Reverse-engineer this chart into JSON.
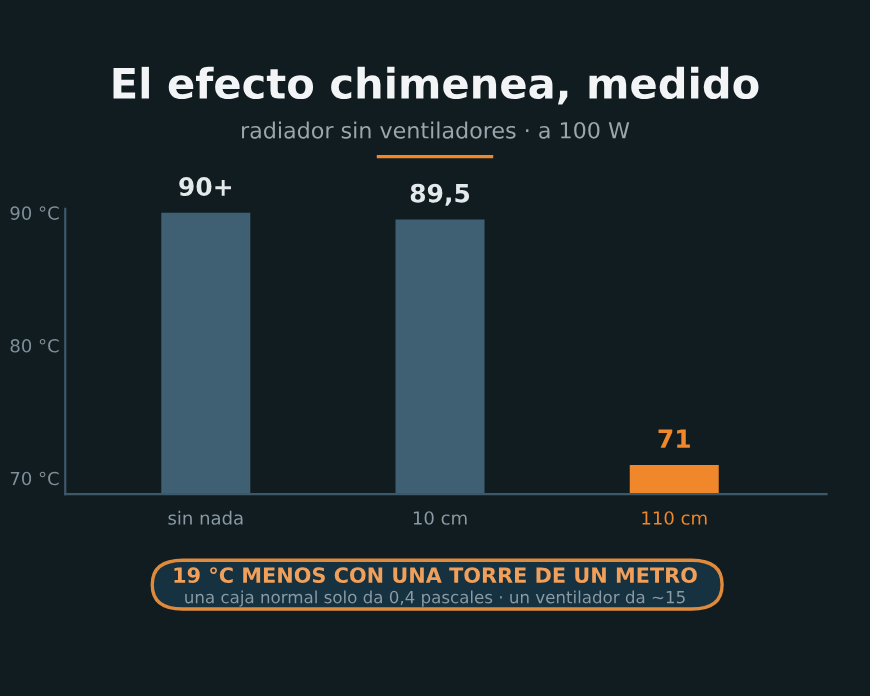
{
  "chart_data": {
    "type": "bar",
    "title": "El efecto chimenea, medido",
    "subtitle": "radiador sin ventiladores · a 100 W",
    "categories": [
      "sin nada",
      "10 cm",
      "110 cm"
    ],
    "values": [
      90,
      89.5,
      71
    ],
    "colors": [
      "#3f6073",
      "#3f6073",
      "#f0872a"
    ],
    "value_labels": [
      "90+",
      "89,5",
      "71"
    ],
    "ylim": [
      68.8,
      90.3
    ],
    "yticks": [
      {
        "value": 70,
        "label": "70 °C"
      },
      {
        "value": 80,
        "label": "80 °C"
      },
      {
        "value": 90,
        "label": "90 °C"
      }
    ],
    "grid": false,
    "legend": false,
    "annotations": [
      "19 °C MENOS CON UNA TORRE DE UN METRO",
      "una caja normal solo da 0,4 pascales · un ventilador da ~15"
    ]
  }
}
